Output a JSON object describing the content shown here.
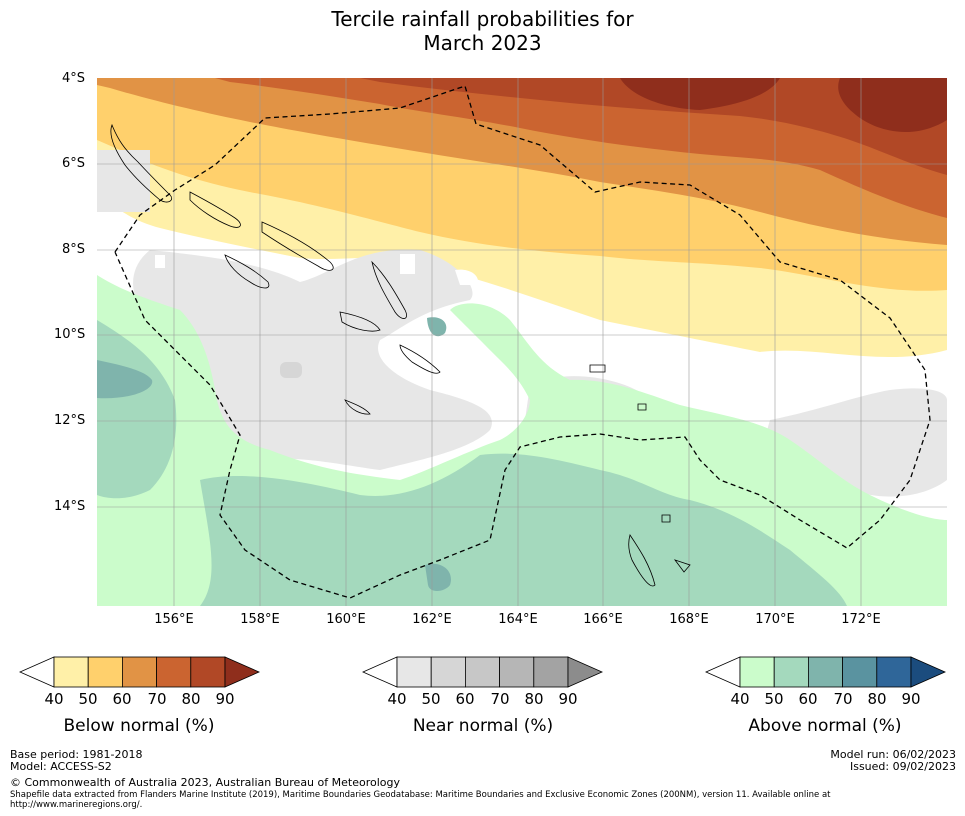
{
  "title": {
    "line1": "Tercile rainfall probabilities for",
    "line2": "March 2023"
  },
  "axes": {
    "latitude_labels": [
      "4°S",
      "6°S",
      "8°S",
      "10°S",
      "12°S",
      "14°S"
    ],
    "longitude_labels": [
      "156°E",
      "158°E",
      "160°E",
      "162°E",
      "164°E",
      "166°E",
      "168°E",
      "170°E",
      "172°E"
    ]
  },
  "legends": {
    "below": {
      "title": "Below normal (%)",
      "ticks": [
        "40",
        "50",
        "60",
        "70",
        "80",
        "90"
      ],
      "colors": [
        "#fff0a8",
        "#ffd06c",
        "#e19345",
        "#cb6430",
        "#b14826",
        "#8f2e1c"
      ]
    },
    "near": {
      "title": "Near normal (%)",
      "ticks": [
        "40",
        "50",
        "60",
        "70",
        "80",
        "90"
      ],
      "colors": [
        "#e7e7e7",
        "#d6d6d6",
        "#c7c7c7",
        "#b6b6b6",
        "#a3a3a3",
        "#8c8c8c"
      ]
    },
    "above": {
      "title": "Above normal (%)",
      "ticks": [
        "40",
        "50",
        "60",
        "70",
        "80",
        "90"
      ],
      "colors": [
        "#cbfccb",
        "#a4d9bd",
        "#7fb4ac",
        "#5a93a0",
        "#2f6699",
        "#1b4c7e"
      ]
    }
  },
  "footer": {
    "base_period": "Base period: 1981-2018",
    "model": "Model: ACCESS-S2",
    "model_run": "Model run: 06/02/2023",
    "issued": "Issued: 09/02/2023",
    "copyright": "© Commonwealth of Australia 2023, Australian Bureau of Meteorology",
    "shapefile_line1": "Shapefile data extracted from Flanders Marine Institute (2019), Maritime Boundaries Geodatabase: Maritime Boundaries and Exclusive Economic Zones (200NM), version 11. Available online at",
    "shapefile_line2": "http://www.marineregions.org/."
  }
}
